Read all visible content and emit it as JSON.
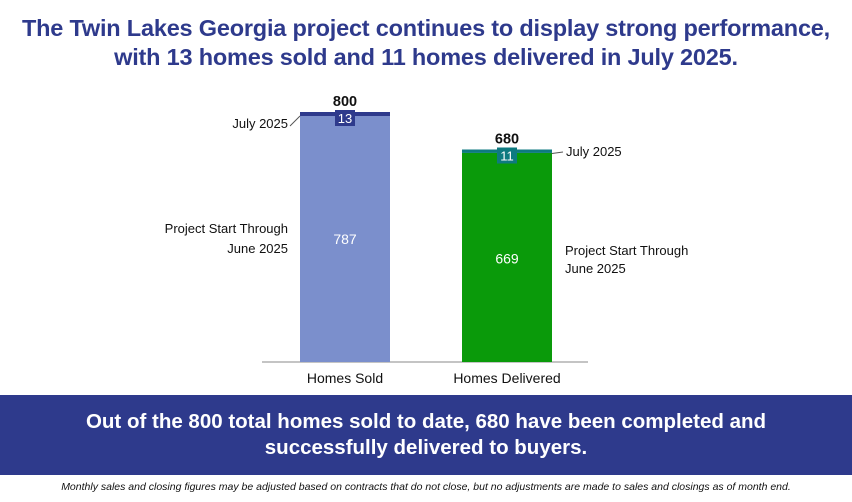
{
  "headline": {
    "line1": "The Twin Lakes Georgia project continues to display strong performance,",
    "line2": "with 13 homes sold and 11 homes delivered in July 2025."
  },
  "chart_data": {
    "type": "bar",
    "stacked": true,
    "categories": [
      "Homes Sold",
      "Homes Delivered"
    ],
    "series": [
      {
        "name": "Project Start Through June 2025",
        "values": [
          787,
          669
        ]
      },
      {
        "name": "July 2025",
        "values": [
          13,
          11
        ]
      }
    ],
    "totals": [
      800,
      680
    ],
    "segment_labels": {
      "base": [
        "Project Start Through",
        "June 2025"
      ],
      "top": "July 2025"
    },
    "colors": {
      "sold_base": "#7b8fcc",
      "sold_top": "#2e3a8c",
      "delivered_base": "#0a9a0a",
      "delivered_top": "#0e7a80"
    },
    "ylim": [
      0,
      800
    ],
    "grid": false,
    "legend": "none"
  },
  "summary": {
    "line1": "Out of the 800 total homes sold to date, 680 have been completed and",
    "line2": "successfully delivered to buyers.",
    "color": "#2e3a8c"
  },
  "footnote": "Monthly sales and closing figures may be adjusted based on contracts that do not close, but no adjustments are made to sales and closings as of month end."
}
